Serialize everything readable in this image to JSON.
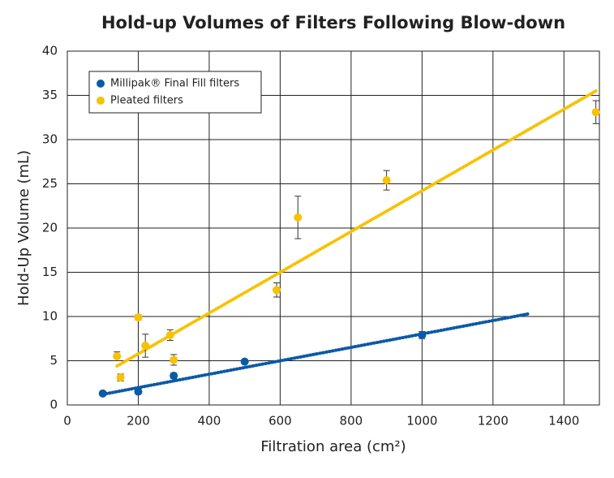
{
  "chart_data": {
    "type": "scatter",
    "title": "Hold-up Volumes of Filters Following Blow-down",
    "xlabel": "Filtration area (cm²)",
    "ylabel": "Hold-Up Volume (mL)",
    "xlim": [
      0,
      1500
    ],
    "ylim": [
      0,
      40
    ],
    "xticks": [
      0,
      200,
      400,
      600,
      800,
      1000,
      1200,
      1400
    ],
    "yticks": [
      0,
      5,
      10,
      15,
      20,
      25,
      30,
      35,
      40
    ],
    "grid": true,
    "legend": "upper left",
    "series": [
      {
        "name": "Millipak® Final Fill filters",
        "color": "#0b5aa6",
        "x": [
          100,
          200,
          300,
          500,
          1000
        ],
        "values": [
          1.3,
          1.5,
          3.3,
          4.9,
          7.9
        ],
        "errors": [
          0.2,
          0.2,
          0.3,
          0.2,
          0.4
        ],
        "trend": {
          "x": [
            100,
            1300
          ],
          "y": [
            1.2,
            10.3
          ]
        }
      },
      {
        "name": "Pleated filters",
        "color": "#f7c200",
        "x": [
          140,
          150,
          200,
          220,
          290,
          300,
          590,
          650,
          900,
          1490
        ],
        "values": [
          5.5,
          3.1,
          9.9,
          6.7,
          7.9,
          5.1,
          13,
          21.2,
          25.4,
          33.1
        ],
        "errors": [
          0.5,
          0.4,
          0.3,
          1.3,
          0.6,
          0.6,
          0.8,
          2.4,
          1.1,
          1.3
        ],
        "trend": {
          "x": [
            140,
            1490
          ],
          "y": [
            4.4,
            35.5
          ]
        }
      }
    ]
  }
}
